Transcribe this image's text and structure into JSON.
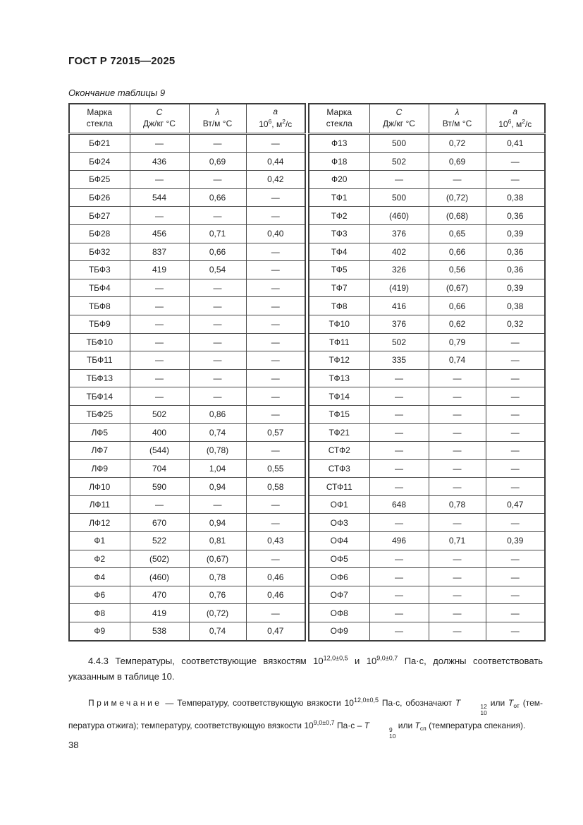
{
  "header": {
    "doc_code": "ГОСТ Р 72015—2025"
  },
  "table": {
    "caption": "Окончание таблицы 9",
    "columns": [
      {
        "line1": "Марка",
        "line2": "стекла"
      },
      {
        "line1": "С",
        "line2": "Дж/кг °С"
      },
      {
        "line1": "λ",
        "line2": "Вт/м °С"
      },
      {
        "line1": "а",
        "l2_1": "10",
        "l2_sup1": "6",
        "l2_2": ", м",
        "l2_sup2": "2",
        "l2_3": "/с"
      }
    ],
    "left_rows": [
      [
        "БФ21",
        "—",
        "—",
        "—"
      ],
      [
        "БФ24",
        "436",
        "0,69",
        "0,44"
      ],
      [
        "БФ25",
        "—",
        "—",
        "0,42"
      ],
      [
        "БФ26",
        "544",
        "0,66",
        "—"
      ],
      [
        "БФ27",
        "—",
        "—",
        "—"
      ],
      [
        "БФ28",
        "456",
        "0,71",
        "0,40"
      ],
      [
        "БФ32",
        "837",
        "0,66",
        "—"
      ],
      [
        "ТБФ3",
        "419",
        "0,54",
        "—"
      ],
      [
        "ТБФ4",
        "—",
        "—",
        "—"
      ],
      [
        "ТБФ8",
        "—",
        "—",
        "—"
      ],
      [
        "ТБФ9",
        "—",
        "—",
        "—"
      ],
      [
        "ТБФ10",
        "—",
        "—",
        "—"
      ],
      [
        "ТБФ11",
        "—",
        "—",
        "—"
      ],
      [
        "ТБФ13",
        "—",
        "—",
        "—"
      ],
      [
        "ТБФ14",
        "—",
        "—",
        "—"
      ],
      [
        "ТБФ25",
        "502",
        "0,86",
        "—"
      ],
      [
        "ЛФ5",
        "400",
        "0,74",
        "0,57"
      ],
      [
        "ЛФ7",
        "(544)",
        "(0,78)",
        "—"
      ],
      [
        "ЛФ9",
        "704",
        "1,04",
        "0,55"
      ],
      [
        "ЛФ10",
        "590",
        "0,94",
        "0,58"
      ],
      [
        "ЛФ11",
        "—",
        "—",
        "—"
      ],
      [
        "ЛФ12",
        "670",
        "0,94",
        "—"
      ],
      [
        "Ф1",
        "522",
        "0,81",
        "0,43"
      ],
      [
        "Ф2",
        "(502)",
        "(0,67)",
        "—"
      ],
      [
        "Ф4",
        "(460)",
        "0,78",
        "0,46"
      ],
      [
        "Ф6",
        "470",
        "0,76",
        "0,46"
      ],
      [
        "Ф8",
        "419",
        "(0,72)",
        "—"
      ],
      [
        "Ф9",
        "538",
        "0,74",
        "0,47"
      ]
    ],
    "right_rows": [
      [
        "Ф13",
        "500",
        "0,72",
        "0,41"
      ],
      [
        "Ф18",
        "502",
        "0,69",
        "—"
      ],
      [
        "Ф20",
        "—",
        "—",
        "—"
      ],
      [
        "ТФ1",
        "500",
        "(0,72)",
        "0,38"
      ],
      [
        "ТФ2",
        "(460)",
        "(0,68)",
        "0,36"
      ],
      [
        "ТФ3",
        "376",
        "0,65",
        "0,39"
      ],
      [
        "ТФ4",
        "402",
        "0,66",
        "0,36"
      ],
      [
        "ТФ5",
        "326",
        "0,56",
        "0,36"
      ],
      [
        "ТФ7",
        "(419)",
        "(0,67)",
        "0,39"
      ],
      [
        "ТФ8",
        "416",
        "0,66",
        "0,38"
      ],
      [
        "ТФ10",
        "376",
        "0,62",
        "0,32"
      ],
      [
        "ТФ11",
        "502",
        "0,79",
        "—"
      ],
      [
        "ТФ12",
        "335",
        "0,74",
        "—"
      ],
      [
        "ТФ13",
        "—",
        "—",
        "—"
      ],
      [
        "ТФ14",
        "—",
        "—",
        "—"
      ],
      [
        "ТФ15",
        "—",
        "—",
        "—"
      ],
      [
        "ТФ21",
        "—",
        "—",
        "—"
      ],
      [
        "СТФ2",
        "—",
        "—",
        "—"
      ],
      [
        "СТФ3",
        "—",
        "—",
        "—"
      ],
      [
        "СТФ11",
        "—",
        "—",
        "—"
      ],
      [
        "ОФ1",
        "648",
        "0,78",
        "0,47"
      ],
      [
        "ОФ3",
        "—",
        "—",
        "—"
      ],
      [
        "ОФ4",
        "496",
        "0,71",
        "0,39"
      ],
      [
        "ОФ5",
        "—",
        "—",
        "—"
      ],
      [
        "ОФ6",
        "—",
        "—",
        "—"
      ],
      [
        "ОФ7",
        "—",
        "—",
        "—"
      ],
      [
        "ОФ8",
        "—",
        "—",
        "—"
      ],
      [
        "ОФ9",
        "—",
        "—",
        "—"
      ]
    ]
  },
  "para443": {
    "t1": "4.4.3 Температуры, соответствующие вязкостям 10",
    "sup1": "12,0±0,5",
    "t2": " и 10",
    "sup2": "9,0±0,7",
    "t3": " Па·с, должны соответство­вать указанным в таблице 10."
  },
  "note": {
    "label": "Примечание",
    "dash": " — ",
    "n1": "Температуру, соответствующую вязкости 10",
    "n1sup": "12,0±0,5",
    "n2": " Па·с, обозначают ",
    "tvar": "T",
    "stack1_top": "12",
    "stack1_bot": "10",
    "n3": " или ",
    "sub_ot": "от",
    "n4": " (тем­пература отжига); температуру, соответствующую вязкости 10",
    "n4sup": "9,0±0,7",
    "n5": " Па·с – ",
    "stack2_top": "9",
    "stack2_bot": "10",
    "n6": " или ",
    "sub_sp": "сп",
    "n7": " (температура спекания)."
  },
  "footer": {
    "page_number": "38"
  }
}
